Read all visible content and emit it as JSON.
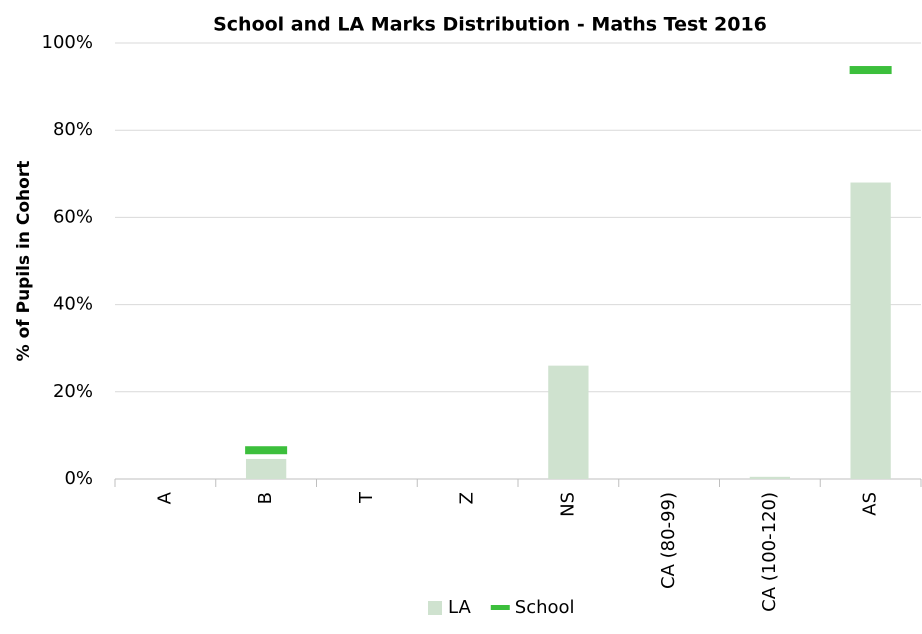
{
  "chart_data": {
    "type": "bar",
    "title": "School and LA Marks Distribution - Maths Test 2016",
    "y_label": "% of Pupils in Cohort",
    "categories": [
      "A",
      "B",
      "T",
      "Z",
      "NS",
      "CA (80-99)",
      "CA (100-120)",
      "AS"
    ],
    "series": [
      {
        "name": "LA",
        "color": "#cfe2cf",
        "mark": "bar",
        "values": [
          0,
          4.6,
          0,
          0,
          26,
          0,
          0.5,
          68
        ]
      },
      {
        "name": "School",
        "color": "#3cbf3c",
        "mark": "dash",
        "values": [
          null,
          6.6,
          null,
          null,
          null,
          null,
          null,
          93.8
        ]
      }
    ],
    "ylim": [
      0,
      100
    ],
    "yticks": [
      {
        "value": 0,
        "label": "0%"
      },
      {
        "value": 20,
        "label": "20%"
      },
      {
        "value": 40,
        "label": "40%"
      },
      {
        "value": 60,
        "label": "60%"
      },
      {
        "value": 80,
        "label": "80%"
      },
      {
        "value": 100,
        "label": "100%"
      }
    ],
    "grid": true,
    "legend": "bottom"
  }
}
